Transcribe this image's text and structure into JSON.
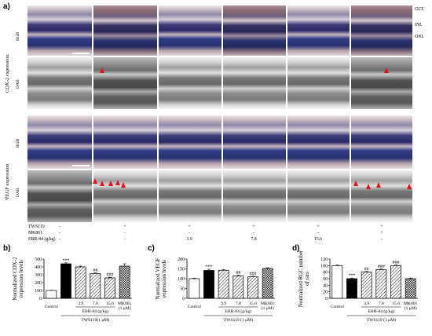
{
  "panel_letters": {
    "a": "a)",
    "b": "b)",
    "c": "c)",
    "d": "d)"
  },
  "top_right_labels": [
    "GCL",
    "INL",
    "ONL"
  ],
  "section_labels": {
    "cox2": "COX-2 expression",
    "vegf": "VEGF expression"
  },
  "row_labels": {
    "rgb1": "RGB",
    "dab1": "DAB",
    "rgb2": "RGB",
    "dab2": "DAB"
  },
  "treatment_table": {
    "rows": [
      {
        "name": "TWS119",
        "values": [
          "−",
          "+",
          "+",
          "+",
          "+",
          "+"
        ]
      },
      {
        "name": "MK801",
        "values": [
          "−",
          "−",
          "−",
          "−",
          "−",
          "+"
        ]
      },
      {
        "name": "EBR-84 (g/kg)",
        "values": [
          "−",
          "−",
          "3.9",
          "7.8",
          "15.6",
          "−"
        ]
      }
    ]
  },
  "red_arrow_colors": {
    "accent": "#e0141b"
  },
  "chart_data": [
    {
      "type": "bar",
      "ylabel": "Normalized COX-2 expression levels",
      "ylim": [
        0,
        500
      ],
      "yticks": [
        "0",
        "100",
        "200",
        "300",
        "400",
        "500"
      ],
      "categories": [
        "Control",
        "",
        "3.9",
        "7.8",
        "15.6",
        "MK801 (1 μM)"
      ],
      "values": [
        100,
        440,
        400,
        315,
        260,
        410
      ],
      "errors": [
        3,
        12,
        10,
        8,
        8,
        30
      ],
      "significance": [
        "",
        "***",
        "",
        "##",
        "###",
        ""
      ],
      "group_label_1": "EBR-84 (g/kg)",
      "group_label_2": "TWS119(1 μM)",
      "xlabels": [
        "Control",
        "3.9",
        "7.8",
        "15.6",
        "MK801",
        "(1 μM)"
      ]
    },
    {
      "type": "bar",
      "ylabel": "Normalized VEGF expression levels",
      "ylim": [
        0,
        200
      ],
      "yticks": [
        "0",
        "50",
        "100",
        "150",
        "200"
      ],
      "categories": [
        "Control",
        "",
        "3.9",
        "7.8",
        "15.6",
        "MK801 (1 μM)"
      ],
      "values": [
        100,
        142,
        143,
        115,
        110,
        152
      ],
      "errors": [
        3,
        6,
        3,
        3,
        2,
        4
      ],
      "significance": [
        "",
        "***",
        "",
        "##",
        "###",
        ""
      ],
      "group_label_1": "EBR-84 (g/kg)",
      "group_label_2": "TWS119 (1 μM)",
      "xlabels": [
        "Control",
        "3.9",
        "7.8",
        "15.6",
        "MK801",
        "(1 μM)"
      ]
    },
    {
      "type": "bar",
      "ylabel": "Normalized RGC number of rats",
      "ylim": [
        0,
        120
      ],
      "yticks": [
        "0",
        "20",
        "40",
        "60",
        "80",
        "100",
        "120"
      ],
      "categories": [
        "Control",
        "",
        "3.9",
        "7.8",
        "15.6",
        "MK801 (1 μM)"
      ],
      "values": [
        100,
        60,
        80,
        88,
        100,
        60
      ],
      "errors": [
        2,
        2,
        2,
        2,
        2,
        2
      ],
      "significance": [
        "",
        "***",
        "##",
        "###",
        "###",
        ""
      ],
      "group_label_1": "EBR-84 (g/kg)",
      "group_label_2": "TWS119 (1 μM)",
      "xlabels": [
        "Control",
        "3.9",
        "7.8",
        "15.6",
        "MK801",
        "(1 μM)"
      ]
    }
  ]
}
